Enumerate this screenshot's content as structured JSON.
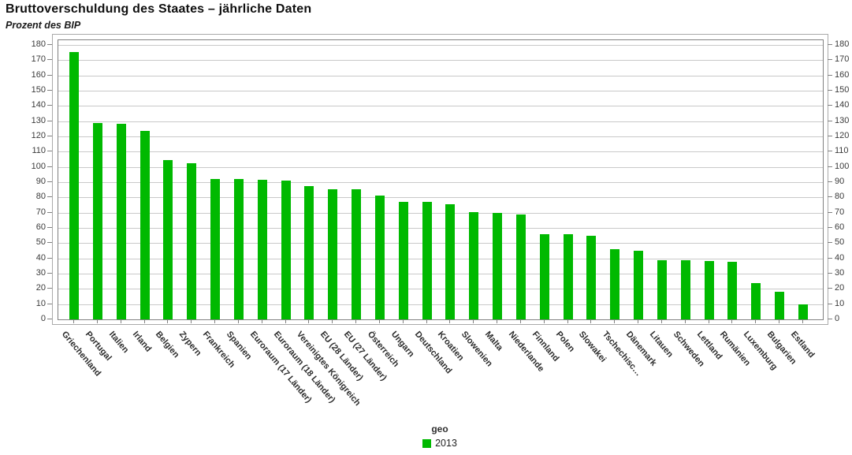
{
  "chart_data": {
    "type": "bar",
    "title": "Bruttoverschuldung des Staates – jährliche Daten",
    "subtitle": "Prozent des BIP",
    "legend_title": "geo",
    "legend_position": "bottom",
    "grid": true,
    "y_axis_side": "both",
    "ylim": [
      0,
      180
    ],
    "ytick_step": 10,
    "bar_color": "#00b900",
    "gridline_color": "#c9c9c9",
    "categories": [
      "Griechenland",
      "Portugal",
      "Italien",
      "Irland",
      "Belgien",
      "Zypern",
      "Frankreich",
      "Spanien",
      "Euroraum (17 Länder)",
      "Euroraum (18 Länder)",
      "Vereinigtes Königreich",
      "EU (28 Länder)",
      "EU (27 Länder)",
      "Österreich",
      "Ungarn",
      "Deutschland",
      "Kroatien",
      "Slowenien",
      "Malta",
      "Niederlande",
      "Finnland",
      "Polen",
      "Slowakei",
      "Tschechisc…",
      "Dänemark",
      "Litauen",
      "Schweden",
      "Lettland",
      "Rumänien",
      "Luxemburg",
      "Bulgarien",
      "Estland"
    ],
    "series": [
      {
        "name": "2013",
        "values": [
          175.1,
          129.0,
          128.5,
          123.7,
          104.5,
          102.2,
          92.2,
          92.1,
          91.6,
          91.1,
          87.2,
          85.5,
          85.5,
          81.2,
          77.3,
          76.9,
          75.7,
          70.4,
          69.8,
          68.6,
          56.0,
          55.7,
          54.9,
          46.0,
          45.0,
          39.0,
          38.6,
          38.2,
          37.9,
          23.6,
          18.3,
          10.0
        ]
      }
    ]
  }
}
